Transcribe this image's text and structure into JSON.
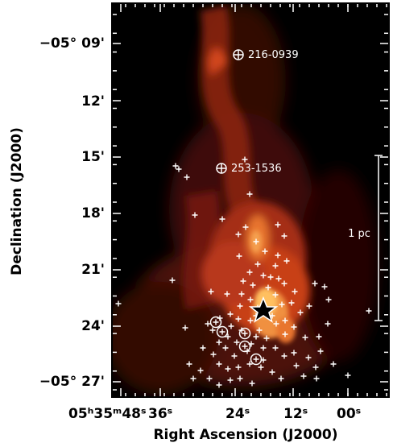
{
  "figure": {
    "y_axis_label": "Declination (J2000)",
    "x_axis_label": "Right Ascension (J2000)",
    "y_ticks": [
      "−05° 09'",
      "12'",
      "15'",
      "18'",
      "21'",
      "24'",
      "−05° 27'"
    ],
    "x_ticks": [
      "05ʰ35ᵐ48ˢ",
      "36ˢ",
      "24ˢ",
      "12ˢ",
      "00ˢ"
    ],
    "annotations": {
      "source_1": "216-0939",
      "source_2": "253-1536",
      "scale_bar": "1 pc"
    },
    "colors": {
      "background": "#000000",
      "emission_core": "#ffd27a",
      "emission_mid": "#d2461e",
      "marker": "#ffffff"
    },
    "markers": {
      "star_symbol": "star",
      "young_star_symbol": "plus",
      "disk_symbol": "circle-plus"
    }
  }
}
